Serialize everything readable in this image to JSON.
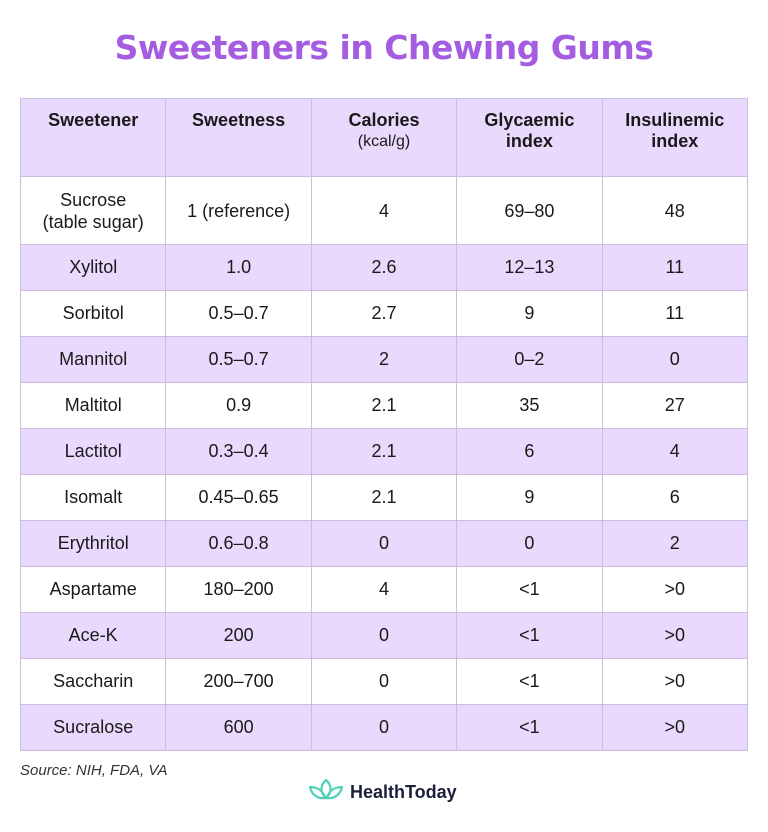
{
  "title": "Sweeteners in Chewing Gums",
  "table": {
    "headers": [
      {
        "main": "Sweetener",
        "sub": ""
      },
      {
        "main": "Sweetness",
        "sub": ""
      },
      {
        "main": "Calories",
        "sub": "(kcal/g)"
      },
      {
        "main": "Glycaemic",
        "sub": "index"
      },
      {
        "main": "Insulinemic",
        "sub": "index"
      }
    ],
    "rows": [
      [
        "Sucrose (table sugar)",
        "1 (reference)",
        "4",
        "69–80",
        "48"
      ],
      [
        "Xylitol",
        "1.0",
        "2.6",
        "12–13",
        "11"
      ],
      [
        "Sorbitol",
        "0.5–0.7",
        "2.7",
        "9",
        "11"
      ],
      [
        "Mannitol",
        "0.5–0.7",
        "2",
        "0–2",
        "0"
      ],
      [
        "Maltitol",
        "0.9",
        "2.1",
        "35",
        "27"
      ],
      [
        "Lactitol",
        "0.3–0.4",
        "2.1",
        "6",
        "4"
      ],
      [
        "Isomalt",
        "0.45–0.65",
        "2.1",
        "9",
        "6"
      ],
      [
        "Erythritol",
        "0.6–0.8",
        "0",
        "0",
        "2"
      ],
      [
        "Aspartame",
        "180–200",
        "4",
        "<1",
        ">0"
      ],
      [
        "Ace-K",
        "200",
        "0",
        "<1",
        ">0"
      ],
      [
        "Saccharin",
        "200–700",
        "0",
        "<1",
        ">0"
      ],
      [
        "Sucralose",
        "600",
        "0",
        "<1",
        ">0"
      ]
    ]
  },
  "footer": {
    "source": "Source: NIH, FDA, VA",
    "brand": "HealthToday",
    "brand_icon": "lotus-icon"
  },
  "colors": {
    "title": "#a45ce0",
    "header_bg": "#e9d9fc",
    "stripe_bg": "#e9d9fc",
    "brand_icon": "#4fd1b8",
    "brand_text": "#1c1f3a"
  },
  "chart_data": {
    "type": "table",
    "title": "Sweeteners in Chewing Gums",
    "columns": [
      "Sweetener",
      "Sweetness",
      "Calories (kcal/g)",
      "Glycaemic index",
      "Insulinemic index"
    ],
    "rows": [
      [
        "Sucrose (table sugar)",
        "1 (reference)",
        "4",
        "69–80",
        "48"
      ],
      [
        "Xylitol",
        "1.0",
        "2.6",
        "12–13",
        "11"
      ],
      [
        "Sorbitol",
        "0.5–0.7",
        "2.7",
        "9",
        "11"
      ],
      [
        "Mannitol",
        "0.5–0.7",
        "2",
        "0–2",
        "0"
      ],
      [
        "Maltitol",
        "0.9",
        "2.1",
        "35",
        "27"
      ],
      [
        "Lactitol",
        "0.3–0.4",
        "2.1",
        "6",
        "4"
      ],
      [
        "Isomalt",
        "0.45–0.65",
        "2.1",
        "9",
        "6"
      ],
      [
        "Erythritol",
        "0.6–0.8",
        "0",
        "0",
        "2"
      ],
      [
        "Aspartame",
        "180–200",
        "4",
        "<1",
        ">0"
      ],
      [
        "Ace-K",
        "200",
        "0",
        "<1",
        ">0"
      ],
      [
        "Saccharin",
        "200–700",
        "0",
        "<1",
        ">0"
      ],
      [
        "Sucralose",
        "600",
        "0",
        "<1",
        ">0"
      ]
    ],
    "annotations": [
      "Source: NIH, FDA, VA"
    ]
  }
}
